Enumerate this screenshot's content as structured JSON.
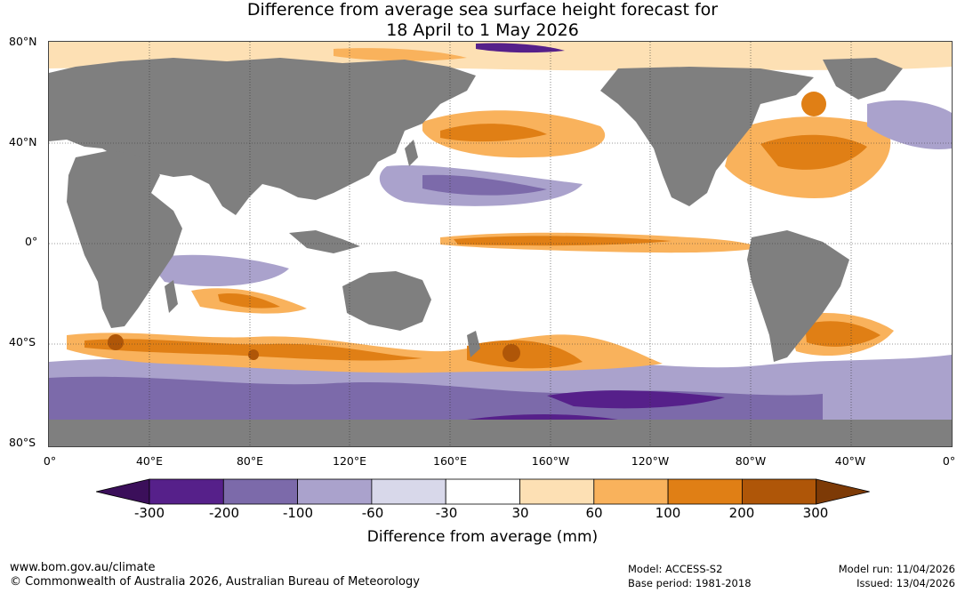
{
  "title": {
    "line1": "Difference from average sea surface height forecast for",
    "line2": "18 April to 1 May 2026"
  },
  "axes": {
    "latitudes": [
      "80°N",
      "40°N",
      "0°",
      "40°S",
      "80°S"
    ],
    "longitudes": [
      "0°",
      "40°E",
      "80°E",
      "120°E",
      "160°E",
      "160°W",
      "120°W",
      "80°W",
      "40°W",
      "0°"
    ]
  },
  "colorbar": {
    "ticks": [
      "-300",
      "-200",
      "-100",
      "-60",
      "-30",
      "30",
      "60",
      "100",
      "200",
      "300"
    ],
    "colors": [
      "#3b0f5a",
      "#56208a",
      "#7c6aaa",
      "#aaa2cc",
      "#d8d8ea",
      "#ffffff",
      "#fde0b4",
      "#f9b25c",
      "#e07f15",
      "#af5608",
      "#7d3a06"
    ],
    "title": "Difference from average (mm)"
  },
  "colors": {
    "land": "#7f7f7f",
    "ocean": "#ffffff"
  },
  "footer": {
    "website": "www.bom.gov.au/climate",
    "copyright": "© Commonwealth of Australia 2026, Australian Bureau of Meteorology",
    "model": "Model: ACCESS-S2",
    "base_period": "Base period: 1981-2018",
    "model_run": "Model run: 11/04/2026",
    "issued": "Issued: 13/04/2026"
  }
}
